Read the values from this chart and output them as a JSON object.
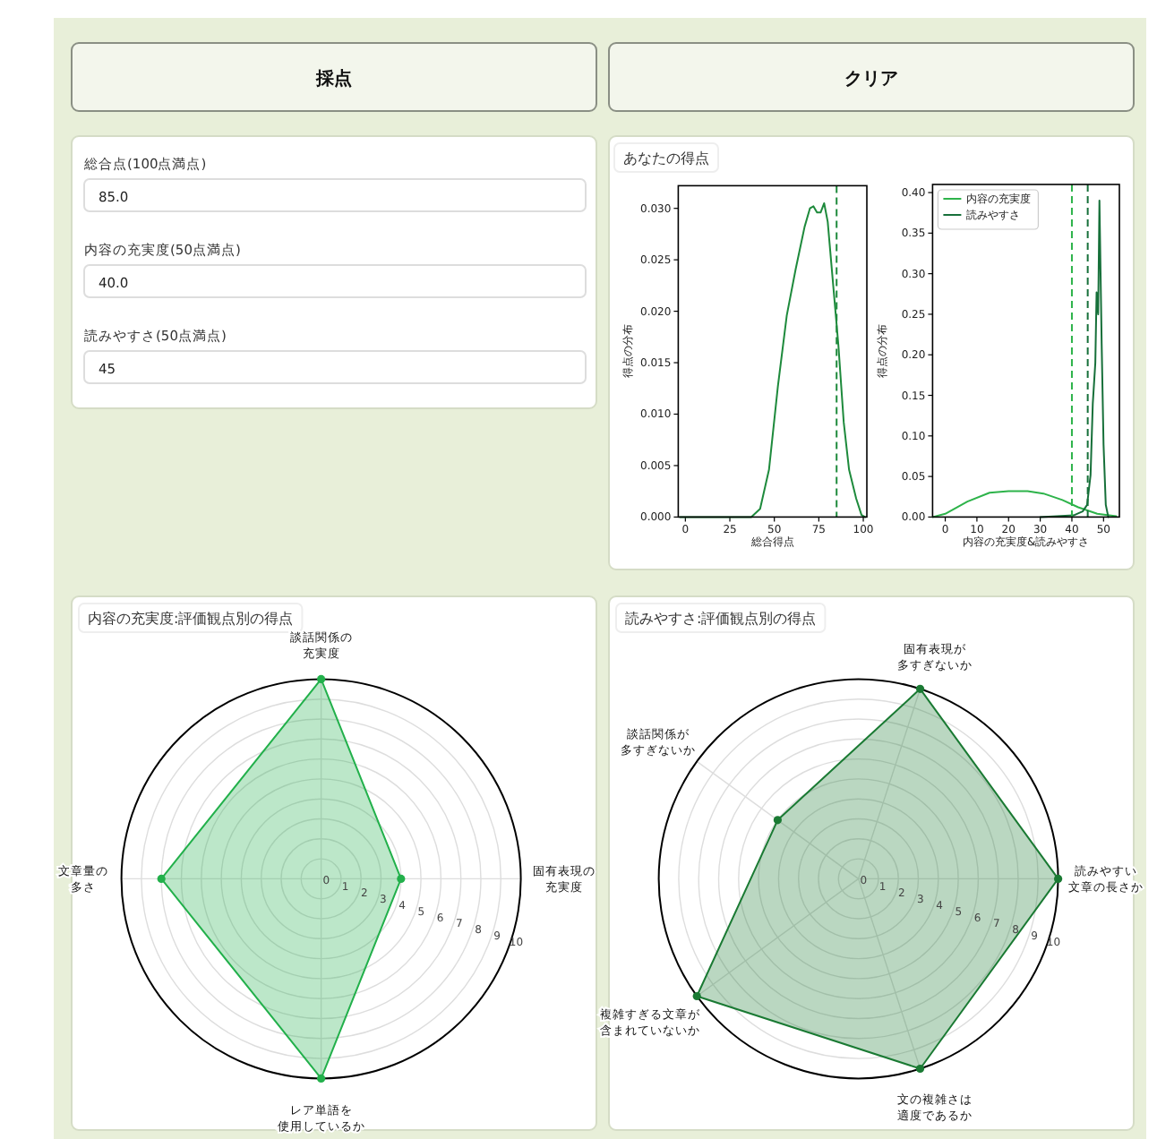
{
  "chart_data": [
    {
      "type": "other",
      "annotations": [
        "採点",
        "クリア",
        "総合点(100点満点)",
        "85.0",
        "内容の充実度(50点満点)",
        "40.0",
        "読みやすさ(50点満点)",
        "45"
      ]
    },
    {
      "type": "line",
      "title": "あなたの得点",
      "xlabel": "総合得点",
      "ylabel": "得点の分布",
      "xlim": [
        -4,
        102
      ],
      "ylim": [
        0,
        0.0322
      ],
      "xticks": [
        0,
        25,
        50,
        75,
        100
      ],
      "yticks": [
        {
          "value": 0,
          "label": "0.000"
        },
        {
          "value": 0.005,
          "label": "0.005"
        },
        {
          "value": 0.01,
          "label": "0.010"
        },
        {
          "value": 0.015,
          "label": "0.015"
        },
        {
          "value": 0.02,
          "label": "0.020"
        },
        {
          "value": 0.025,
          "label": "0.025"
        },
        {
          "value": 0.03,
          "label": "0.030"
        }
      ],
      "series": [
        {
          "color": "#1e8a3c",
          "x": [
            -3,
            37,
            42,
            47,
            52,
            57,
            62,
            67,
            70,
            72,
            74,
            76,
            78,
            80,
            82,
            86,
            89,
            92,
            96,
            99,
            101
          ],
          "values": [
            0,
            0,
            0.0008,
            0.0046,
            0.0127,
            0.0196,
            0.0241,
            0.0282,
            0.03,
            0.0302,
            0.0296,
            0.0296,
            0.0305,
            0.0287,
            0.0247,
            0.0167,
            0.0092,
            0.0046,
            0.0018,
            0.0002,
            0
          ]
        }
      ],
      "ref_lines": [
        {
          "axis": "x",
          "value": 85,
          "color": "#1e8a3c",
          "line_style": "dashed"
        }
      ]
    },
    {
      "type": "line",
      "xlabel": "内容の充実度&読みやすさ",
      "ylabel": "得点の分布",
      "xlim": [
        -4,
        55
      ],
      "ylim": [
        0,
        0.41
      ],
      "xticks": [
        0,
        10,
        20,
        30,
        40,
        50
      ],
      "yticks": [
        {
          "value": 0,
          "label": "0.00"
        },
        {
          "value": 0.05,
          "label": "0.05"
        },
        {
          "value": 0.1,
          "label": "0.10"
        },
        {
          "value": 0.15,
          "label": "0.15"
        },
        {
          "value": 0.2,
          "label": "0.20"
        },
        {
          "value": 0.25,
          "label": "0.25"
        },
        {
          "value": 0.3,
          "label": "0.30"
        },
        {
          "value": 0.35,
          "label": "0.35"
        },
        {
          "value": 0.4,
          "label": "0.40"
        }
      ],
      "legend": "top left",
      "series": [
        {
          "name": "内容の充実度",
          "color": "#2db34a",
          "x": [
            -3.9,
            0,
            7,
            14,
            20,
            26,
            31,
            37,
            42,
            48,
            54
          ],
          "values": [
            0,
            0.004,
            0.019,
            0.03,
            0.032,
            0.032,
            0.029,
            0.021,
            0.012,
            0.004,
            0.001
          ]
        },
        {
          "name": "読みやすさ",
          "color": "#17703a",
          "x": [
            30,
            40.5,
            43.4,
            44.8,
            45.9,
            46.6,
            47.4,
            47.8,
            48.3,
            48.7,
            49.4,
            50,
            50.7,
            51.5
          ],
          "values": [
            0,
            0.002,
            0.007,
            0.015,
            0.052,
            0.14,
            0.19,
            0.277,
            0.25,
            0.39,
            0.214,
            0.089,
            0.015,
            0
          ]
        }
      ],
      "ref_lines": [
        {
          "axis": "x",
          "value": 40,
          "color": "#2db34a",
          "line_style": "dashed"
        },
        {
          "axis": "x",
          "value": 45,
          "color": "#17703a",
          "line_style": "dashed"
        }
      ]
    },
    {
      "type": "radar",
      "title": "内容の充実度:評価観点別の得点",
      "categories": [
        "談話関係の充実度",
        "固有表現の充実度",
        "レア単語を使用しているか",
        "文章量の多さ"
      ],
      "ylim": [
        0,
        10
      ],
      "yticks": [
        0,
        1,
        2,
        3,
        4,
        5,
        6,
        7,
        8,
        9,
        10
      ],
      "grid": true,
      "marker": "circle",
      "series": [
        {
          "color": "#22b04b",
          "values": [
            10,
            4,
            10,
            8
          ]
        }
      ]
    },
    {
      "type": "radar",
      "title": "読みやすさ:評価観点別の得点",
      "categories": [
        "固有表現が多すぎないか",
        "読みやすい文章の長さか",
        "文の複雑さは適度であるか",
        "複雑すぎる文章が含まれていないか",
        "談話関係が多すぎないか"
      ],
      "ylim": [
        0,
        10
      ],
      "yticks": [
        0,
        1,
        2,
        3,
        4,
        5,
        6,
        7,
        8,
        9,
        10
      ],
      "grid": true,
      "marker": "circle",
      "series": [
        {
          "color": "#1a7a33",
          "values": [
            10,
            10,
            10,
            10,
            5
          ]
        }
      ]
    }
  ]
}
